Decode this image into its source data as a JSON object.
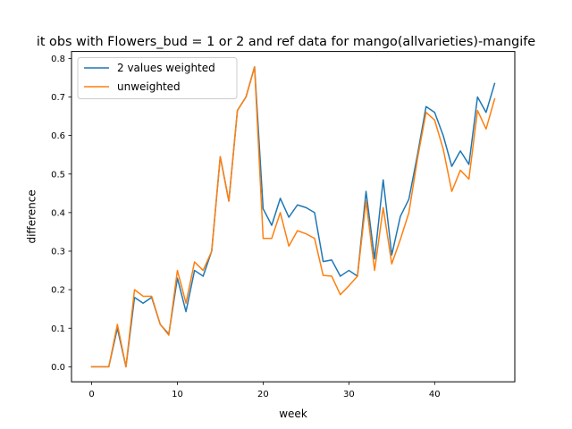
{
  "chart_data": {
    "type": "line",
    "title": "it obs with Flowers_bud = 1 or 2 and ref data for mango(allvarieties)-mangife",
    "xlabel": "week",
    "ylabel": "difference",
    "xlim": [
      -2.35,
      49.35
    ],
    "ylim": [
      -0.039,
      0.818
    ],
    "xticks": [
      0,
      10,
      20,
      30,
      40
    ],
    "yticks": [
      0.0,
      0.1,
      0.2,
      0.3,
      0.4,
      0.5,
      0.6,
      0.7,
      0.8
    ],
    "ytick_labels": [
      "0.0",
      "0.1",
      "0.2",
      "0.3",
      "0.4",
      "0.5",
      "0.6",
      "0.7",
      "0.8"
    ],
    "grid": false,
    "legend_position": "top-left",
    "x": [
      0,
      1,
      2,
      3,
      4,
      5,
      6,
      7,
      8,
      9,
      10,
      11,
      12,
      13,
      14,
      15,
      16,
      17,
      18,
      19,
      20,
      21,
      22,
      23,
      24,
      25,
      26,
      27,
      28,
      29,
      30,
      31,
      32,
      33,
      34,
      35,
      36,
      37,
      38,
      39,
      40,
      41,
      42,
      43,
      44,
      45,
      46,
      47
    ],
    "series": [
      {
        "name": "2 values weighted",
        "color": "#1f77b4",
        "values": [
          0.0,
          0.0,
          0.0,
          0.1,
          0.0,
          0.18,
          0.165,
          0.18,
          0.11,
          0.085,
          0.23,
          0.143,
          0.25,
          0.235,
          0.3,
          0.545,
          0.43,
          0.665,
          0.7,
          0.778,
          0.41,
          0.367,
          0.437,
          0.388,
          0.42,
          0.413,
          0.4,
          0.273,
          0.277,
          0.235,
          0.25,
          0.235,
          0.455,
          0.28,
          0.485,
          0.29,
          0.39,
          0.435,
          0.55,
          0.675,
          0.66,
          0.6,
          0.52,
          0.56,
          0.525,
          0.7,
          0.66,
          0.735
        ]
      },
      {
        "name": "unweighted",
        "color": "#ff7f0e",
        "values": [
          0.0,
          0.0,
          0.0,
          0.11,
          0.0,
          0.2,
          0.183,
          0.183,
          0.11,
          0.082,
          0.25,
          0.165,
          0.272,
          0.25,
          0.3,
          0.545,
          0.43,
          0.665,
          0.7,
          0.778,
          0.333,
          0.333,
          0.4,
          0.313,
          0.353,
          0.345,
          0.333,
          0.237,
          0.235,
          0.187,
          0.21,
          0.235,
          0.43,
          0.25,
          0.413,
          0.267,
          0.33,
          0.4,
          0.54,
          0.66,
          0.64,
          0.565,
          0.455,
          0.51,
          0.487,
          0.665,
          0.617,
          0.695
        ]
      }
    ]
  }
}
